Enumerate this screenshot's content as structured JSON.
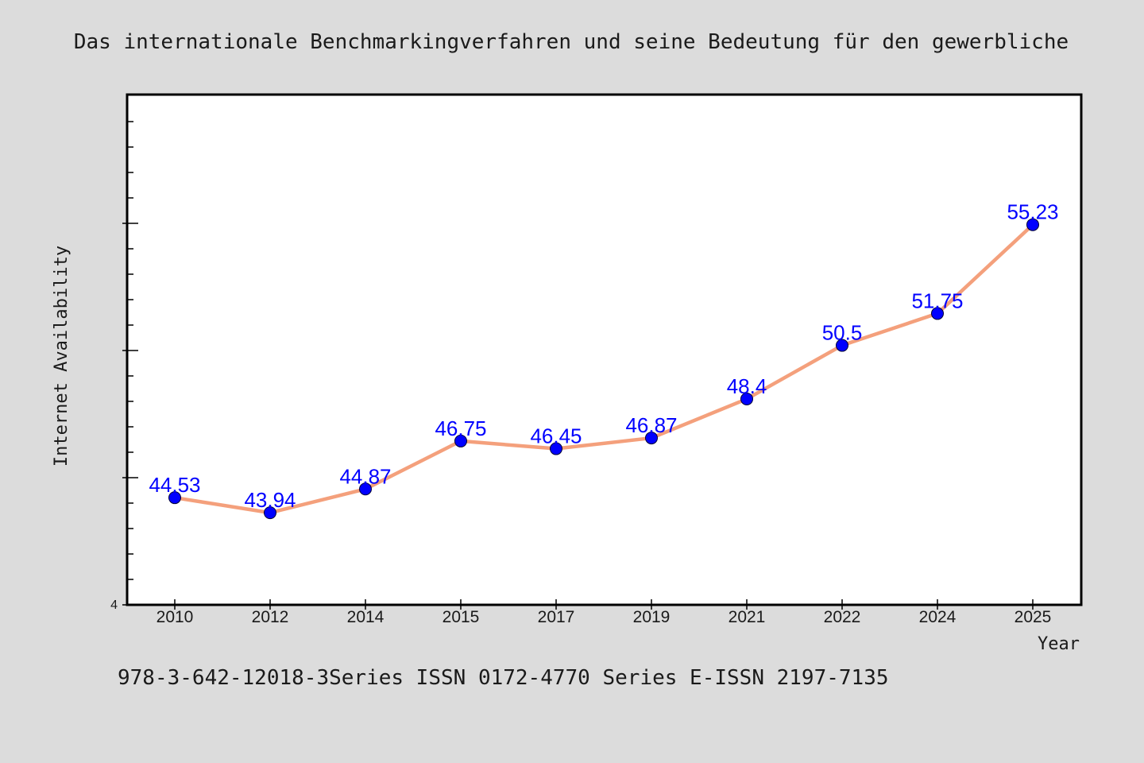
{
  "chart_data": {
    "type": "line",
    "title": "Das internationale Benchmarkingverfahren und seine Bedeutung für den gewerbliche",
    "xlabel": "Year",
    "ylabel": "Internet Availability",
    "categories": [
      "2010",
      "2012",
      "2014",
      "2015",
      "2017",
      "2019",
      "2021",
      "2022",
      "2024",
      "2025"
    ],
    "series": [
      {
        "values": [
          44.53,
          43.94,
          44.87,
          46.75,
          46.45,
          46.87,
          48.4,
          50.5,
          51.75,
          55.23
        ],
        "value_labels": [
          "44.53",
          "43.94",
          "44.87",
          "46.75",
          "46.45",
          "46.87",
          "48.4",
          "50.5",
          "51.75",
          "55.23"
        ],
        "color": "#f4a07c",
        "marker_color": "#0000ff"
      }
    ],
    "y_tick_labels": [
      "4"
    ],
    "ylim": [
      40.33,
      60.33
    ],
    "grid": false,
    "footer": "978-3-642-12018-3Series ISSN 0172-4770 Series E-ISSN 2197-7135"
  },
  "colors": {
    "background": "#dcdcdc",
    "plot_background": "#ffffff",
    "line": "#f4a07c",
    "marker": "#0000ff",
    "data_label": "#0000ff",
    "text": "#1a1a1a"
  }
}
